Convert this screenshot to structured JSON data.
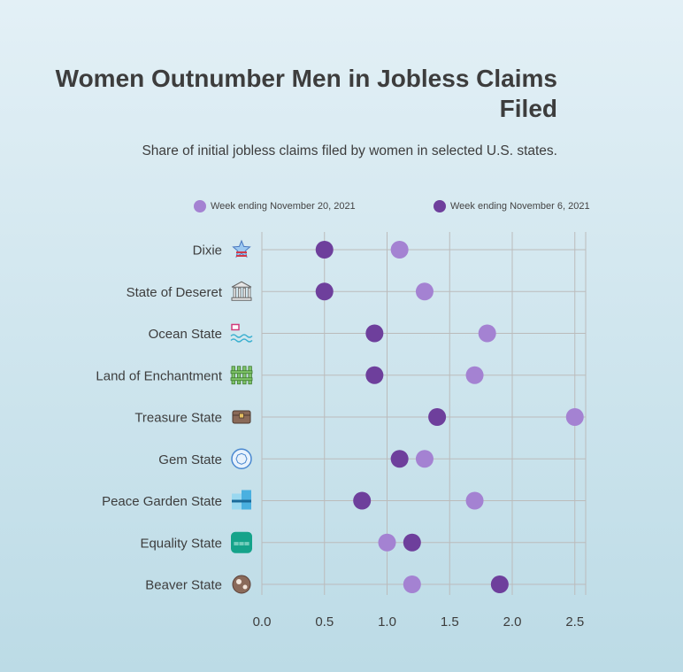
{
  "title": "Women Outnumber Men in Jobless Claims Filed",
  "subtitle": "Share of initial jobless claims filed by women in selected U.S. states.",
  "colors": {
    "series_nov20": "#a482d2",
    "series_nov6": "#6e3f9c",
    "grid": "#bbbbbb"
  },
  "chart_data": {
    "type": "scatter",
    "title": "Women Outnumber Men in Jobless Claims Filed",
    "subtitle": "Share of initial jobless claims filed by women in selected U.S. states.",
    "categories": [
      "Dixie",
      "State of Deseret",
      "Ocean State",
      "Land of Enchantment",
      "Treasure State",
      "Gem State",
      "Peace Garden State",
      "Equality State",
      "Beaver State"
    ],
    "category_icons": [
      "star-icon",
      "courthouse-icon",
      "ocean-waves-icon",
      "fence-icon",
      "treasure-chest-icon",
      "gem-icon",
      "peace-garden-icon",
      "equality-icon",
      "beaver-icon"
    ],
    "series": [
      {
        "name": "Week ending November 20, 2021",
        "values": [
          1.1,
          1.3,
          1.8,
          1.7,
          2.5,
          1.3,
          1.7,
          1.0,
          1.2
        ]
      },
      {
        "name": "Week ending November 6, 2021",
        "values": [
          0.5,
          0.5,
          0.9,
          0.9,
          1.4,
          1.1,
          0.8,
          1.2,
          1.9
        ]
      }
    ],
    "xticks": [
      "0.0",
      "0.5",
      "1.0",
      "1.5",
      "2.0",
      "2.5"
    ],
    "xlim": [
      0,
      2.6
    ],
    "xlabel": "",
    "ylabel": "",
    "grid": true,
    "legend": "top"
  }
}
